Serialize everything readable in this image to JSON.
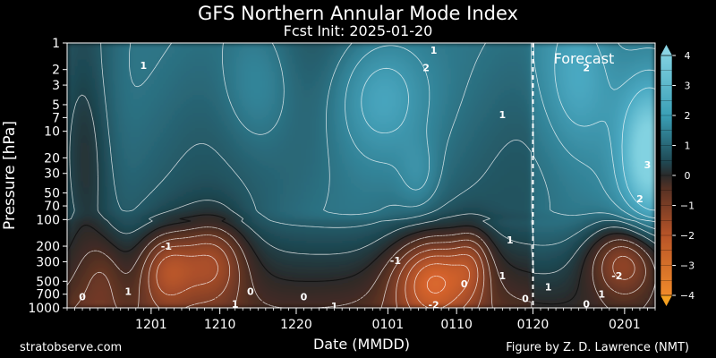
{
  "title": "GFS Northern Annular Mode Index",
  "subtitle": "Fcst Init: 2025-01-20",
  "footer_left": "stratobserve.com",
  "footer_right": "Figure by Z. D. Lawrence (NMT)",
  "chart_data": {
    "type": "heatmap",
    "xlabel": "Date (MMDD)",
    "ylabel": "Pressure [hPa]",
    "x_range": [
      "2024-11-20",
      "2025-02-05"
    ],
    "x_tick_dates": [
      "2024-12-01",
      "2024-12-10",
      "2024-12-20",
      "2025-01-01",
      "2025-01-10",
      "2025-01-20",
      "2025-02-01"
    ],
    "x_tick_labels": [
      "1201",
      "1210",
      "1220",
      "0101",
      "0110",
      "0120",
      "0201"
    ],
    "y_scale": "log",
    "y_ticks": [
      1,
      2,
      3,
      5,
      7,
      10,
      20,
      30,
      50,
      70,
      100,
      200,
      300,
      500,
      700,
      1000
    ],
    "y_tick_labels": [
      "1",
      "2",
      "3",
      "5",
      "7",
      "10",
      "20",
      "30",
      "50",
      "70",
      "100",
      "200",
      "300",
      "500",
      "700",
      "1000"
    ],
    "forecast_start": "2025-01-20",
    "annotation": "Forecast",
    "colorbar": {
      "min": -4,
      "max": 4,
      "ticks": [
        4,
        3,
        2,
        1,
        0,
        -1,
        -2,
        -3,
        -4
      ],
      "tick_labels": [
        "4",
        "3",
        "2",
        "1",
        "0",
        "−1",
        "−2",
        "−3",
        "−4"
      ],
      "positive_color": "#3a9fb6",
      "negative_color": "#e8702c",
      "zero_color": "#2a2a2a"
    },
    "contour_labels": [
      {
        "text": "1",
        "date": "2024-11-30",
        "hpa": 1.8
      },
      {
        "text": "2",
        "date": "2025-01-06",
        "hpa": 1.9
      },
      {
        "text": "1",
        "date": "2025-01-07",
        "hpa": 1.2
      },
      {
        "text": "1",
        "date": "2025-01-16",
        "hpa": 6.5
      },
      {
        "text": "2",
        "date": "2025-01-27",
        "hpa": 1.9
      },
      {
        "text": "3",
        "date": "2025-02-04",
        "hpa": 24
      },
      {
        "text": "2",
        "date": "2025-02-03",
        "hpa": 58
      },
      {
        "text": "1",
        "date": "2025-01-17",
        "hpa": 170
      },
      {
        "text": "-1",
        "date": "2024-12-03",
        "hpa": 200
      },
      {
        "text": "1",
        "date": "2024-11-28",
        "hpa": 650
      },
      {
        "text": "-1",
        "date": "2025-01-02",
        "hpa": 290
      },
      {
        "text": "0",
        "date": "2025-01-11",
        "hpa": 530
      },
      {
        "text": "1",
        "date": "2025-01-16",
        "hpa": 430
      },
      {
        "text": "0",
        "date": "2024-12-14",
        "hpa": 650
      },
      {
        "text": "0",
        "date": "2024-12-21",
        "hpa": 750
      },
      {
        "text": "1",
        "date": "2024-12-25",
        "hpa": 950
      },
      {
        "text": "1",
        "date": "2024-12-12",
        "hpa": 900
      },
      {
        "text": "0",
        "date": "2024-11-22",
        "hpa": 750
      },
      {
        "text": "-2",
        "date": "2025-01-07",
        "hpa": 920
      },
      {
        "text": "0",
        "date": "2025-01-19",
        "hpa": 780
      },
      {
        "text": "1",
        "date": "2025-01-22",
        "hpa": 580
      },
      {
        "text": "-2",
        "date": "2025-01-31",
        "hpa": 430
      },
      {
        "text": "1",
        "date": "2025-01-29",
        "hpa": 700
      },
      {
        "text": "0",
        "date": "2025-01-27",
        "hpa": 900
      }
    ]
  }
}
